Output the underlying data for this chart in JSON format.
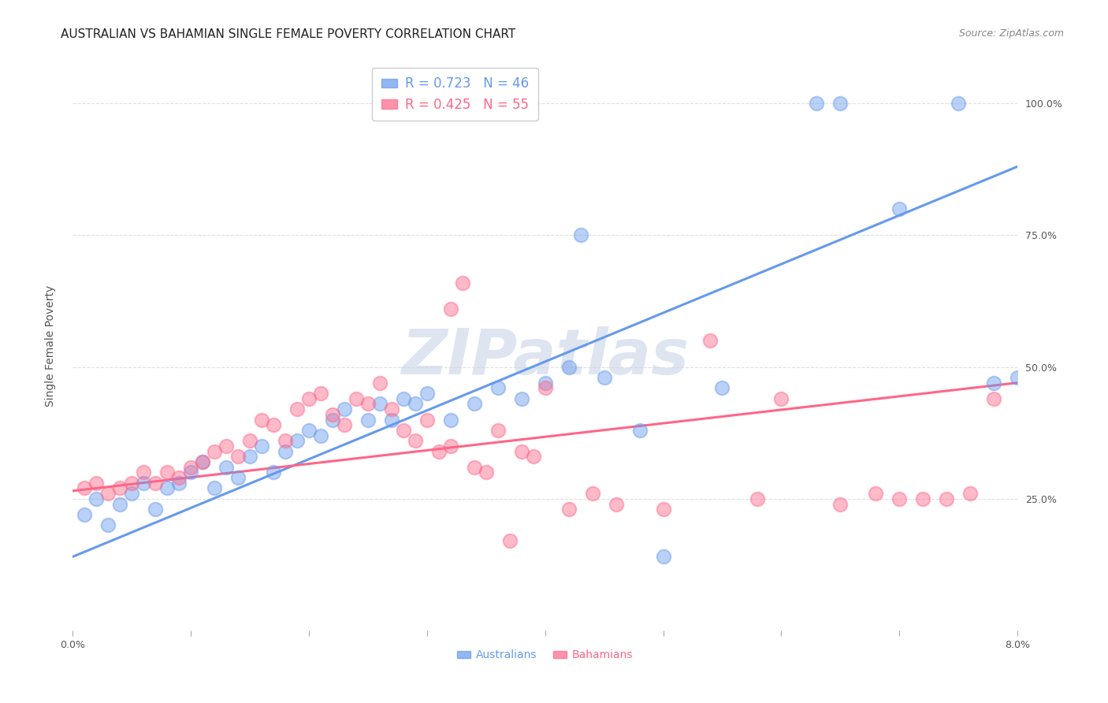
{
  "title": "AUSTRALIAN VS BAHAMIAN SINGLE FEMALE POVERTY CORRELATION CHART",
  "source": "Source: ZipAtlas.com",
  "ylabel": "Single Female Poverty",
  "x_min": 0.0,
  "x_max": 0.08,
  "y_min": 0.0,
  "y_max": 1.08,
  "australian_color": "#6699ee",
  "bahamian_color": "#ff6688",
  "legend_r_australian": "R = 0.723",
  "legend_n_australian": "N = 46",
  "legend_r_bahamian": "R = 0.425",
  "legend_n_bahamian": "N = 55",
  "watermark": "ZIPatlas",
  "aus_scatter_x": [
    0.001,
    0.002,
    0.003,
    0.004,
    0.005,
    0.006,
    0.007,
    0.008,
    0.009,
    0.01,
    0.011,
    0.012,
    0.013,
    0.014,
    0.015,
    0.016,
    0.017,
    0.018,
    0.019,
    0.02,
    0.021,
    0.022,
    0.023,
    0.025,
    0.026,
    0.027,
    0.028,
    0.029,
    0.03,
    0.032,
    0.034,
    0.036,
    0.038,
    0.04,
    0.042,
    0.043,
    0.045,
    0.048,
    0.05,
    0.055,
    0.063,
    0.065,
    0.07,
    0.075,
    0.078,
    0.08
  ],
  "aus_scatter_y": [
    0.22,
    0.25,
    0.2,
    0.24,
    0.26,
    0.28,
    0.23,
    0.27,
    0.28,
    0.3,
    0.32,
    0.27,
    0.31,
    0.29,
    0.33,
    0.35,
    0.3,
    0.34,
    0.36,
    0.38,
    0.37,
    0.4,
    0.42,
    0.4,
    0.43,
    0.4,
    0.44,
    0.43,
    0.45,
    0.4,
    0.43,
    0.46,
    0.44,
    0.47,
    0.5,
    0.75,
    0.48,
    0.38,
    0.14,
    0.46,
    1.0,
    1.0,
    0.8,
    1.0,
    0.47,
    0.48
  ],
  "bah_scatter_x": [
    0.001,
    0.002,
    0.003,
    0.004,
    0.005,
    0.006,
    0.007,
    0.008,
    0.009,
    0.01,
    0.011,
    0.012,
    0.013,
    0.014,
    0.015,
    0.016,
    0.017,
    0.018,
    0.019,
    0.02,
    0.021,
    0.022,
    0.023,
    0.024,
    0.025,
    0.026,
    0.027,
    0.028,
    0.029,
    0.03,
    0.031,
    0.032,
    0.034,
    0.036,
    0.038,
    0.04,
    0.042,
    0.044,
    0.046,
    0.05,
    0.054,
    0.058,
    0.06,
    0.065,
    0.068,
    0.07,
    0.072,
    0.074,
    0.076,
    0.078,
    0.032,
    0.033,
    0.035,
    0.037,
    0.039
  ],
  "bah_scatter_y": [
    0.27,
    0.28,
    0.26,
    0.27,
    0.28,
    0.3,
    0.28,
    0.3,
    0.29,
    0.31,
    0.32,
    0.34,
    0.35,
    0.33,
    0.36,
    0.4,
    0.39,
    0.36,
    0.42,
    0.44,
    0.45,
    0.41,
    0.39,
    0.44,
    0.43,
    0.47,
    0.42,
    0.38,
    0.36,
    0.4,
    0.34,
    0.35,
    0.31,
    0.38,
    0.34,
    0.46,
    0.23,
    0.26,
    0.24,
    0.23,
    0.55,
    0.25,
    0.44,
    0.24,
    0.26,
    0.25,
    0.25,
    0.25,
    0.26,
    0.44,
    0.61,
    0.66,
    0.3,
    0.17,
    0.33
  ],
  "aus_line_x": [
    0.0,
    0.08
  ],
  "aus_line_y": [
    0.14,
    0.88
  ],
  "bah_line_x": [
    0.0,
    0.08
  ],
  "bah_line_y": [
    0.265,
    0.47
  ],
  "grid_color": "#e0e0e0",
  "background_color": "#ffffff",
  "title_fontsize": 11,
  "source_fontsize": 9,
  "label_fontsize": 10,
  "tick_fontsize": 9,
  "legend_fontsize": 12
}
